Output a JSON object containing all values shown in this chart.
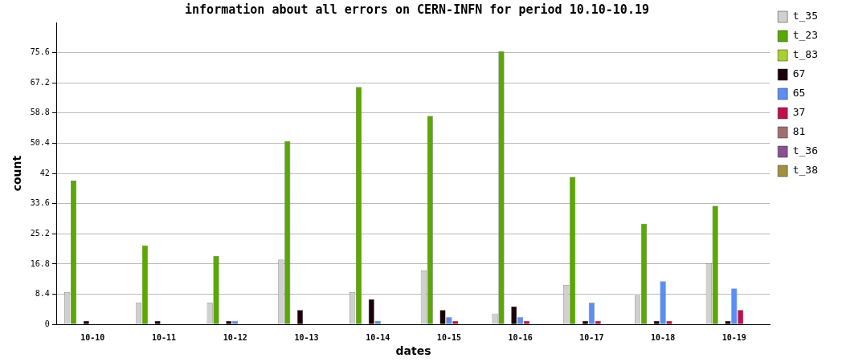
{
  "chart_data": {
    "type": "bar",
    "title": "information about all errors on CERN-INFN for period 10.10-10.19",
    "xlabel": "dates",
    "ylabel": "count",
    "categories": [
      "10-10",
      "10-11",
      "10-12",
      "10-13",
      "10-14",
      "10-15",
      "10-16",
      "10-17",
      "10-18",
      "10-19"
    ],
    "series": [
      {
        "name": "t_35",
        "color": "#d0d0d0",
        "values": [
          9,
          6,
          6,
          18,
          9,
          15,
          3,
          11,
          8,
          17
        ]
      },
      {
        "name": "t_23",
        "color": "#5aa800",
        "values": [
          40,
          22,
          19,
          51,
          66,
          58,
          76,
          41,
          28,
          33
        ]
      },
      {
        "name": "t_83",
        "color": "#a8d030",
        "values": [
          0,
          0,
          0,
          0,
          0,
          0,
          0,
          0,
          0,
          0
        ]
      },
      {
        "name": "67",
        "color": "#1a0008",
        "values": [
          1,
          1,
          1,
          4,
          7,
          4,
          5,
          1,
          1,
          1
        ]
      },
      {
        "name": "65",
        "color": "#5b8ef0",
        "values": [
          0,
          0,
          1,
          0,
          1,
          2,
          2,
          6,
          12,
          10
        ]
      },
      {
        "name": "37",
        "color": "#c0104a",
        "values": [
          0,
          0,
          0,
          0,
          0,
          1,
          1,
          1,
          1,
          4
        ]
      },
      {
        "name": "81",
        "color": "#a07070",
        "values": [
          0,
          0,
          0,
          0,
          0,
          0,
          0,
          0,
          0,
          0
        ]
      },
      {
        "name": "t_36",
        "color": "#8a5090",
        "values": [
          0,
          0,
          0,
          0,
          0,
          0,
          0,
          0,
          0,
          0
        ]
      },
      {
        "name": "t_38",
        "color": "#a09040",
        "values": [
          0,
          0,
          0,
          0,
          0,
          0,
          0,
          0,
          0,
          0
        ]
      }
    ],
    "ylim": [
      0,
      84
    ],
    "yticks": [
      0,
      8.4,
      16.8,
      25.2,
      33.6,
      42,
      50.4,
      58.8,
      67.2,
      75.6
    ],
    "grid": "y",
    "legend": "right"
  }
}
